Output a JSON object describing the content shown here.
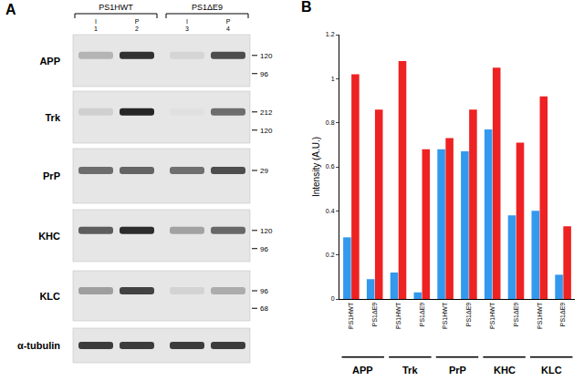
{
  "panel_a": {
    "label": "A",
    "groups": [
      {
        "name": "PS1HWT",
        "lanes": [
          {
            "fraction": "I",
            "number": "1"
          },
          {
            "fraction": "P",
            "number": "2"
          }
        ]
      },
      {
        "name": "PS1ΔE9",
        "lanes": [
          {
            "fraction": "I",
            "number": "3"
          },
          {
            "fraction": "P",
            "number": "4"
          }
        ]
      }
    ],
    "rows": [
      {
        "protein": "APP",
        "markers": [
          120,
          96
        ]
      },
      {
        "protein": "Trk",
        "markers": [
          212,
          120
        ]
      },
      {
        "protein": "PrP",
        "markers": [
          29
        ]
      },
      {
        "protein": "KHC",
        "markers": [
          120,
          96
        ]
      },
      {
        "protein": "KLC",
        "markers": [
          96,
          68
        ]
      },
      {
        "protein": "α-tubulin",
        "markers": []
      }
    ]
  },
  "chart_data": {
    "type": "bar",
    "panel_label": "B",
    "ylabel": "Intensity (A.U.)",
    "categories": [
      "PS1HWT",
      "PS1ΔE9",
      "PS1HWT",
      "PS1ΔE9",
      "PS1HWT",
      "PS1ΔE9",
      "PS1HWT",
      "PS1ΔE9",
      "PS1HWT",
      "PS1ΔE9"
    ],
    "groups": [
      "APP",
      "Trk",
      "PrP",
      "KHC",
      "KLC"
    ],
    "series": [
      {
        "color": "#3399ee",
        "values": [
          0.28,
          0.09,
          0.12,
          0.03,
          0.68,
          0.67,
          0.77,
          0.38,
          0.4,
          0.11
        ]
      },
      {
        "color": "#ee2222",
        "values": [
          1.02,
          0.86,
          1.08,
          0.68,
          0.73,
          0.86,
          1.05,
          0.71,
          0.92,
          0.33
        ]
      }
    ],
    "ylim": [
      0,
      1.2
    ],
    "yticks": [
      0,
      0.2,
      0.4,
      0.6,
      0.8,
      1,
      1.2
    ],
    "grid": false
  }
}
